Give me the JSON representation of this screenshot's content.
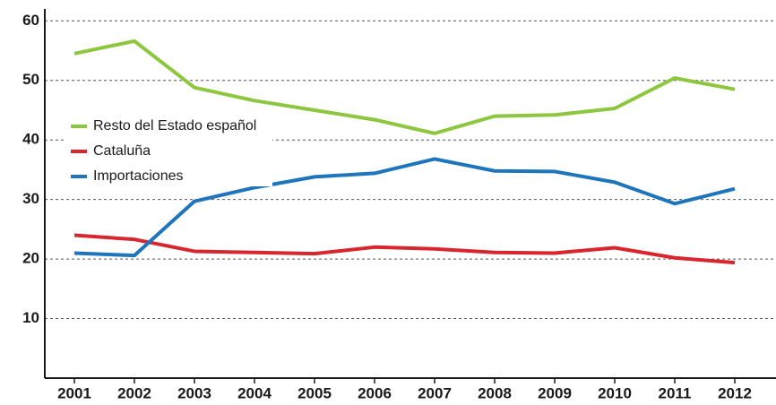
{
  "chart_data": {
    "type": "line",
    "categories": [
      "2001",
      "2002",
      "2003",
      "2004",
      "2005",
      "2006",
      "2007",
      "2008",
      "2009",
      "2010",
      "2011",
      "2012"
    ],
    "series": [
      {
        "name": "Resto del Estado español",
        "color": "#8dc63f",
        "values": [
          54.5,
          56.6,
          48.8,
          46.6,
          45.0,
          43.4,
          41.1,
          44.0,
          44.2,
          45.3,
          50.4,
          48.5
        ]
      },
      {
        "name": "Cataluña",
        "color": "#d7262e",
        "values": [
          24.0,
          23.3,
          21.3,
          21.1,
          20.9,
          22.0,
          21.7,
          21.1,
          21.0,
          21.9,
          20.2,
          19.4
        ]
      },
      {
        "name": "Importaciones",
        "color": "#1f75bb",
        "values": [
          21.0,
          20.6,
          29.7,
          32.0,
          33.8,
          34.4,
          36.8,
          34.8,
          34.7,
          32.9,
          29.3,
          31.8
        ]
      }
    ],
    "ylim": [
      0,
      62
    ],
    "yticks": [
      10,
      20,
      30,
      40,
      50,
      60
    ],
    "grid": true,
    "legend": "upper left"
  }
}
